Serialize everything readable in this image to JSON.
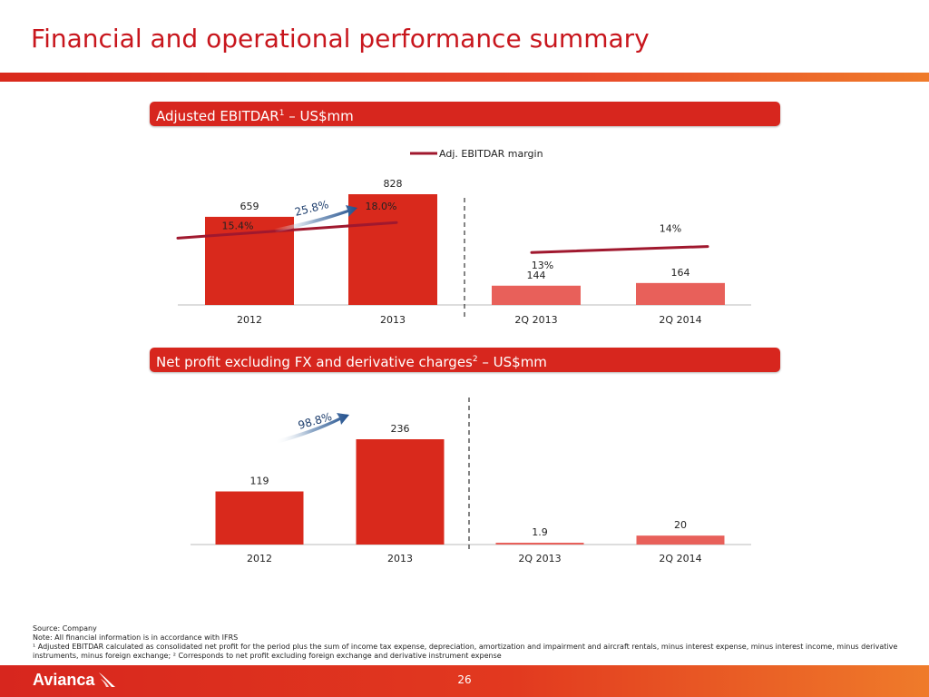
{
  "slide": {
    "title": "Financial and operational performance summary",
    "page_number": "26",
    "logo_text": "Avianca"
  },
  "sections": [
    {
      "header_text": "Adjusted EBITDAR",
      "header_sup": "1",
      "header_suffix": " – US$mm"
    },
    {
      "header_text": "Net profit excluding FX and derivative charges",
      "header_sup": "2",
      "header_suffix": " – US$mm"
    }
  ],
  "footnotes": [
    "Source: Company",
    "Note: All financial information is in accordance with IFRS",
    "¹ Adjusted EBITDAR calculated as consolidated net profit for the period plus the sum of income tax expense, depreciation, amortization and impairment and aircraft rentals, minus interest expense, minus interest income, minus derivative instruments, minus foreign exchange; ² Corresponds to net profit excluding foreign exchange and derivative instrument expense"
  ],
  "colors": {
    "accent": "#d7261e",
    "bar_annual": "#d9291c",
    "bar_quarter": "#e8605a",
    "margin_line": "#a0182e",
    "growth_arrow": "#1f4e8c"
  },
  "chart_data": [
    {
      "type": "bar",
      "categories": [
        "2012",
        "2013",
        "2Q 2013",
        "2Q 2014"
      ],
      "values": [
        659,
        828,
        144,
        164
      ],
      "value_labels": [
        "659",
        "828",
        "144",
        "164"
      ],
      "ylim": [
        0,
        1000
      ],
      "legend": {
        "label": "Adj. EBITDAR margin",
        "position": "top"
      },
      "line_series": {
        "name": "Adj. EBITDAR margin",
        "values": [
          15.4,
          18.0,
          13,
          14
        ],
        "labels": [
          "15.4%",
          "18.0%",
          "13%",
          "14%"
        ]
      },
      "growth_annotation": "25.8%",
      "separator": "dashed line between annual and quarterly periods"
    },
    {
      "type": "bar",
      "categories": [
        "2012",
        "2013",
        "2Q 2013",
        "2Q 2014"
      ],
      "values": [
        119,
        236,
        1.9,
        20
      ],
      "value_labels": [
        "119",
        "236",
        "1.9",
        "20"
      ],
      "ylim": [
        0,
        300
      ],
      "growth_annotation": "98.8%",
      "separator": "dashed line between annual and quarterly periods"
    }
  ]
}
